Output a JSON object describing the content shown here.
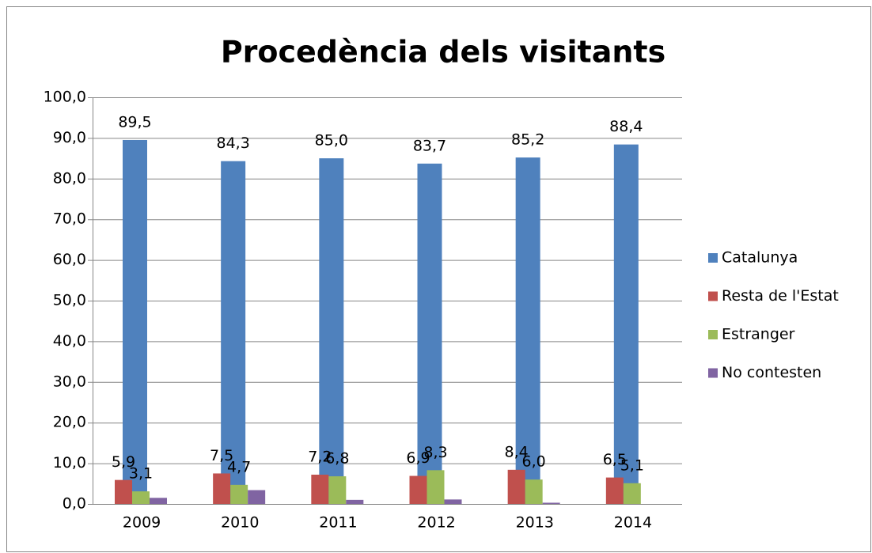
{
  "chart_data": {
    "type": "bar",
    "title": "Procedència dels visitants",
    "categories": [
      "2009",
      "2010",
      "2011",
      "2012",
      "2013",
      "2014"
    ],
    "series": [
      {
        "name": "Catalunya",
        "color": "#4f81bd",
        "values": [
          89.5,
          84.3,
          85.0,
          83.7,
          85.2,
          88.4
        ],
        "value_labels": [
          "89,5",
          "84,3",
          "85,0",
          "83,7",
          "85,2",
          "88,4"
        ]
      },
      {
        "name": "Resta de l'Estat",
        "color": "#c0504d",
        "values": [
          5.9,
          7.5,
          7.2,
          6.9,
          8.4,
          6.5
        ],
        "value_labels": [
          "5,9",
          "7,5",
          "7,2",
          "6,9",
          "8,4",
          "6,5"
        ]
      },
      {
        "name": "Estranger",
        "color": "#9bbb59",
        "values": [
          3.1,
          4.7,
          6.8,
          8.3,
          6.0,
          5.1
        ],
        "value_labels": [
          "3,1",
          "4,7",
          "6,8",
          "8,3",
          "6,0",
          "5,1"
        ]
      },
      {
        "name": "No contesten",
        "color": "#8064a2",
        "values": [
          1.5,
          3.4,
          1.0,
          1.1,
          0.3,
          0
        ]
      }
    ],
    "ylim": [
      0,
      100
    ],
    "yticks": [
      {
        "value": 0,
        "label": "0,0"
      },
      {
        "value": 10,
        "label": "10,0"
      },
      {
        "value": 20,
        "label": "20,0"
      },
      {
        "value": 30,
        "label": "30,0"
      },
      {
        "value": 40,
        "label": "40,0"
      },
      {
        "value": 50,
        "label": "50,0"
      },
      {
        "value": 60,
        "label": "60,0"
      },
      {
        "value": 70,
        "label": "70,0"
      },
      {
        "value": 80,
        "label": "80,0"
      },
      {
        "value": 90,
        "label": "90,0"
      },
      {
        "value": 100,
        "label": "100,0"
      }
    ],
    "grid": true,
    "legend": "right"
  }
}
